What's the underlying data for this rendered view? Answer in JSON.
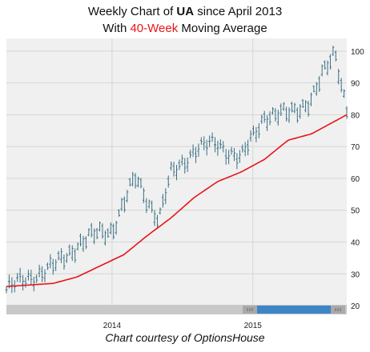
{
  "title": {
    "line1_prefix": "Weekly Chart of ",
    "line1_ticker": "UA",
    "line1_suffix": " since April 2013",
    "line2_prefix": "With ",
    "line2_highlight": "40-Week",
    "line2_suffix": " Moving Average"
  },
  "caption": "Chart courtesy of OptionsHouse",
  "colors": {
    "plot_bg": "#f0f0f0",
    "price_bars": "#3a6f84",
    "moving_average": "#e8141a",
    "scrollbar_thumb": "#3d86c6",
    "scrollbar_track": "#c8c8c8"
  },
  "chart_data": {
    "type": "line",
    "y_ticks": [
      "20",
      "30",
      "40",
      "50",
      "60",
      "70",
      "80",
      "90",
      "100"
    ],
    "x_ticks": [
      "2014",
      "2015"
    ],
    "x_range": [
      "2013-04",
      "2015-09"
    ],
    "ylim": [
      18,
      104
    ],
    "grid": true,
    "series": [
      {
        "kind": "ohlc",
        "x": [
          "2013-04",
          "2013-06",
          "2013-08",
          "2013-10",
          "2013-12",
          "2014-01",
          "2014-02",
          "2014-03",
          "2014-05",
          "2014-06",
          "2014-08",
          "2014-10",
          "2014-12",
          "2015-02",
          "2015-04",
          "2015-06",
          "2015-08",
          "2015-09"
        ],
        "values": [
          25,
          29,
          32,
          39,
          43,
          44,
          52,
          60,
          47,
          61,
          69,
          71,
          66,
          80,
          80,
          85,
          100,
          82
        ]
      },
      {
        "name": "40-Week",
        "x": [
          "2013-04",
          "2013-08",
          "2013-10",
          "2013-12",
          "2014-02",
          "2014-04",
          "2014-06",
          "2014-08",
          "2014-10",
          "2014-12",
          "2015-02",
          "2015-04",
          "2015-06",
          "2015-08",
          "2015-09"
        ],
        "values": [
          26,
          27,
          29,
          32.5,
          36,
          42,
          47.5,
          54,
          59,
          62,
          66,
          72,
          74,
          78,
          80
        ]
      }
    ]
  }
}
